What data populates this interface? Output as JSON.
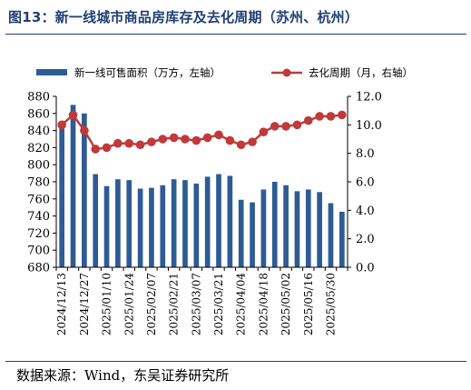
{
  "title": "图13：新一线城市商品房库存及去化周期（苏州、杭州）",
  "source": "数据来源：Wind，东吴证券研究所",
  "chart_data": {
    "type": "bar+line",
    "title": "图13：新一线城市商品房库存及去化周期（苏州、杭州）",
    "x": [
      "2024/12/13",
      "2024/12/20",
      "2024/12/27",
      "2025/01/03",
      "2025/01/10",
      "2025/01/17",
      "2025/01/24",
      "2025/01/31",
      "2025/02/07",
      "2025/02/14",
      "2025/02/21",
      "2025/02/28",
      "2025/03/07",
      "2025/03/14",
      "2025/03/21",
      "2025/03/28",
      "2025/04/04",
      "2025/04/11",
      "2025/04/18",
      "2025/04/25",
      "2025/05/02",
      "2025/05/09",
      "2025/05/16",
      "2025/05/23",
      "2025/05/30",
      "2025/06/06"
    ],
    "xtick_labels": [
      "2024/12/13",
      "2024/12/27",
      "2025/01/10",
      "2025/01/24",
      "2025/02/07",
      "2025/02/21",
      "2025/03/07",
      "2025/03/21",
      "2025/04/04",
      "2025/04/18",
      "2025/05/02",
      "2025/05/16",
      "2025/05/30"
    ],
    "series": [
      {
        "name": "新一线可售面积（万方，左轴）",
        "type": "bar",
        "axis": "left",
        "color": "#2e5b94",
        "values": [
          845,
          870,
          860,
          789,
          775,
          783,
          782,
          772,
          773,
          776,
          783,
          782,
          778,
          786,
          789,
          787,
          759,
          756,
          771,
          780,
          776,
          769,
          771,
          768,
          755,
          745
        ]
      },
      {
        "name": "去化周期（月，右轴）",
        "type": "line",
        "axis": "right",
        "color": "#c0393b",
        "values": [
          10.0,
          10.7,
          9.6,
          8.3,
          8.4,
          8.7,
          8.7,
          8.6,
          8.8,
          9.0,
          9.1,
          9.0,
          8.9,
          9.1,
          9.3,
          8.9,
          8.6,
          8.8,
          9.5,
          9.9,
          9.9,
          10.0,
          10.3,
          10.6,
          10.6,
          10.7
        ]
      }
    ],
    "y_left": {
      "ylim": [
        680,
        880
      ],
      "ticks": [
        "680",
        "700",
        "720",
        "740",
        "760",
        "780",
        "800",
        "820",
        "840",
        "860",
        "880"
      ]
    },
    "y_right": {
      "ylim": [
        0,
        12
      ],
      "ticks": [
        "0.0",
        "2.0",
        "4.0",
        "6.0",
        "8.0",
        "10.0",
        "12.0"
      ]
    },
    "legend_position": "top",
    "grid": false
  }
}
